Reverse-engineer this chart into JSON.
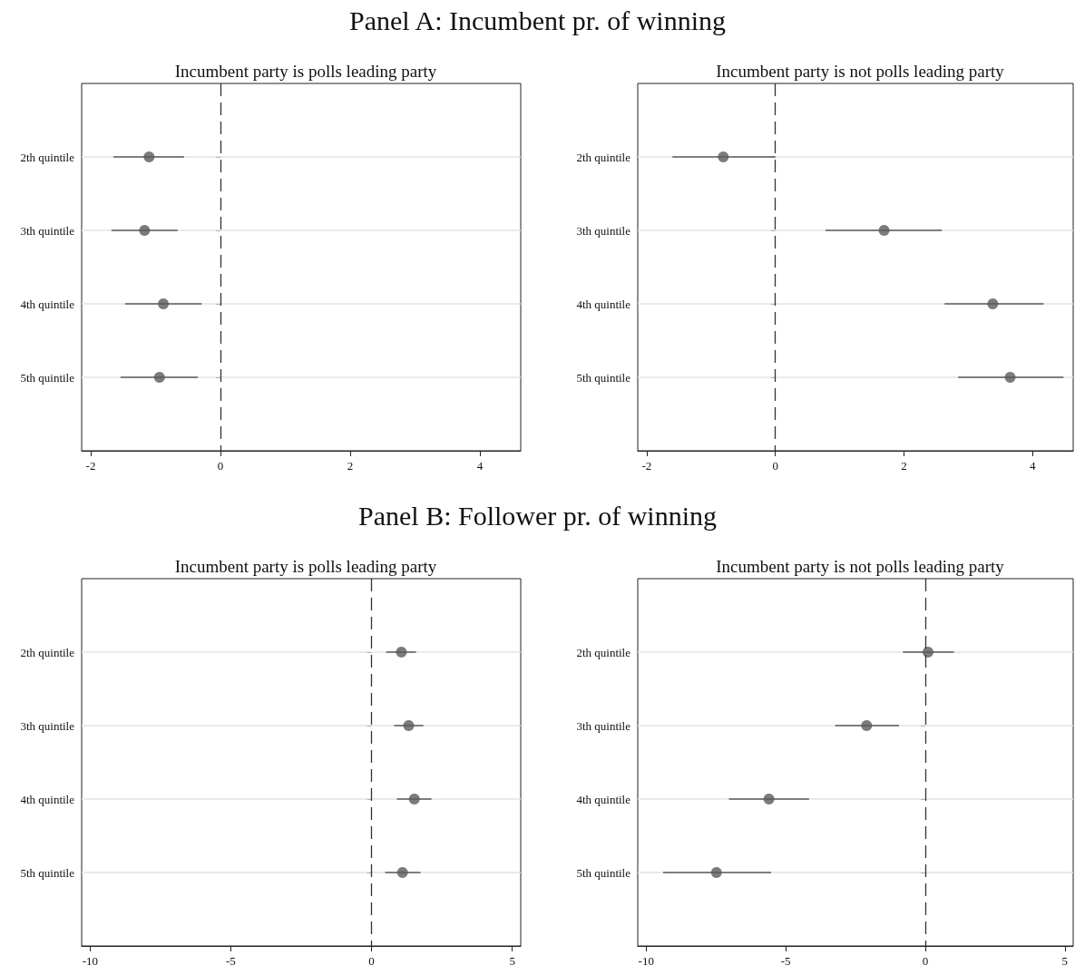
{
  "chart_data": [
    {
      "type": "scatter",
      "orientation": "horizontal",
      "title": "Incumbent party is polls leading party",
      "annotations": [
        "Panel A: Incumbent pr. of winning"
      ],
      "categories": [
        "2th quintile",
        "3th quintile",
        "4th quintile",
        "5th quintile"
      ],
      "color": "#5a5a5a",
      "marker": "circle",
      "values": [
        -1.1,
        -1.17,
        -0.88,
        -0.94
      ],
      "errors": [
        [
          -1.65,
          -0.56
        ],
        [
          -1.68,
          -0.66
        ],
        [
          -1.47,
          -0.29
        ],
        [
          -1.54,
          -0.35
        ]
      ],
      "xlim": [
        -2.14,
        4.63
      ],
      "xticks": [
        -2,
        0,
        2,
        4
      ],
      "grid": "y",
      "ref_lines": [
        {
          "axis": "x",
          "value": 0,
          "line_style": "dashed",
          "color": "#333333"
        }
      ]
    },
    {
      "type": "scatter",
      "orientation": "horizontal",
      "title": "Incumbent party is not polls leading party",
      "categories": [
        "2th quintile",
        "3th quintile",
        "4th quintile",
        "5th quintile"
      ],
      "color": "#5a5a5a",
      "marker": "circle",
      "values": [
        -0.81,
        1.69,
        3.38,
        3.65
      ],
      "errors": [
        [
          -1.6,
          0.0
        ],
        [
          0.78,
          2.59
        ],
        [
          2.63,
          4.17
        ],
        [
          2.84,
          4.48
        ]
      ],
      "xlim": [
        -2.14,
        4.63
      ],
      "xticks": [
        -2,
        0,
        2,
        4
      ],
      "grid": "y",
      "ref_lines": [
        {
          "axis": "x",
          "value": 0,
          "line_style": "dashed",
          "color": "#333333"
        }
      ]
    },
    {
      "type": "scatter",
      "orientation": "horizontal",
      "title": "Incumbent party is polls leading party",
      "annotations": [
        "Panel B: Follower pr. of winning"
      ],
      "categories": [
        "2th quintile",
        "3th quintile",
        "4th quintile",
        "5th quintile"
      ],
      "color": "#5a5a5a",
      "marker": "circle",
      "values": [
        1.06,
        1.32,
        1.52,
        1.1
      ],
      "errors": [
        [
          0.52,
          1.58
        ],
        [
          0.8,
          1.84
        ],
        [
          0.9,
          2.13
        ],
        [
          0.48,
          1.74
        ]
      ],
      "xlim": [
        -10.3,
        5.3
      ],
      "xticks": [
        -10,
        -5,
        0,
        5
      ],
      "grid": "y",
      "ref_lines": [
        {
          "axis": "x",
          "value": 0,
          "line_style": "dashed",
          "color": "#333333"
        }
      ]
    },
    {
      "type": "scatter",
      "orientation": "horizontal",
      "title": "Incumbent party is not polls leading party",
      "categories": [
        "2th quintile",
        "3th quintile",
        "4th quintile",
        "5th quintile"
      ],
      "color": "#5a5a5a",
      "marker": "circle",
      "values": [
        0.1,
        -2.1,
        -5.6,
        -7.48
      ],
      "errors": [
        [
          -0.8,
          1.03
        ],
        [
          -3.23,
          -0.94
        ],
        [
          -7.03,
          -4.16
        ],
        [
          -9.39,
          -5.52
        ]
      ],
      "xlim": [
        -10.3,
        5.3
      ],
      "xticks": [
        -10,
        -5,
        0,
        5
      ],
      "grid": "y",
      "ref_lines": [
        {
          "axis": "x",
          "value": 0,
          "line_style": "dashed",
          "color": "#333333"
        }
      ]
    }
  ]
}
